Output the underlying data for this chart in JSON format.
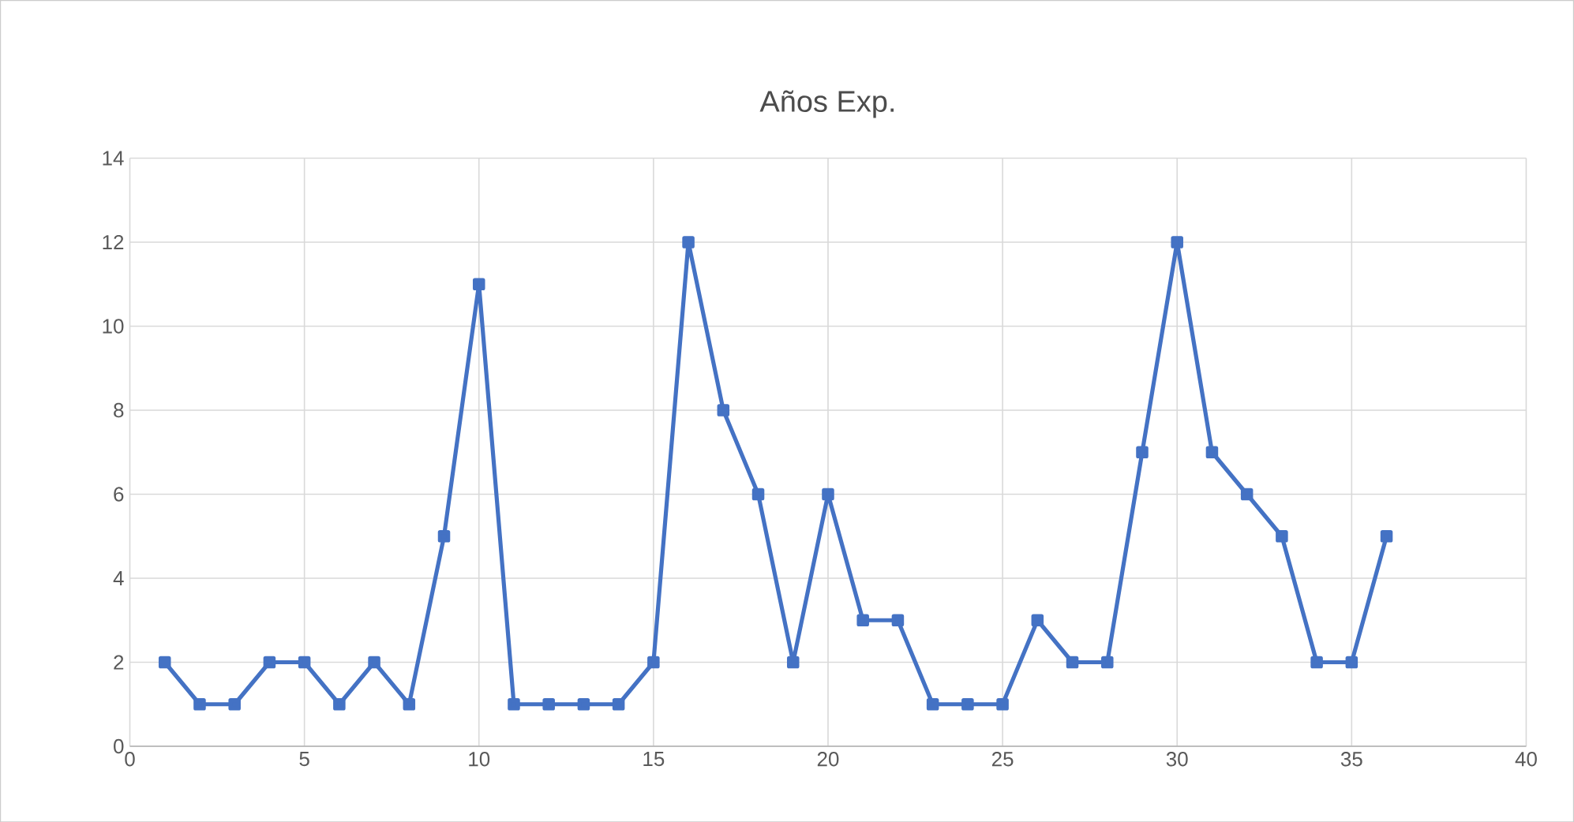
{
  "chart_data": {
    "type": "line",
    "title": "Años Exp.",
    "x": [
      1,
      2,
      3,
      4,
      5,
      6,
      7,
      8,
      9,
      10,
      11,
      12,
      13,
      14,
      15,
      16,
      17,
      18,
      19,
      20,
      21,
      22,
      23,
      24,
      25,
      26,
      27,
      28,
      29,
      30,
      31,
      32,
      33,
      34,
      35,
      36
    ],
    "series": [
      {
        "color": "#4472c4",
        "values": [
          2,
          1,
          1,
          2,
          2,
          1,
          2,
          1,
          5,
          11,
          1,
          1,
          1,
          1,
          2,
          12,
          8,
          6,
          2,
          6,
          3,
          3,
          1,
          1,
          1,
          3,
          2,
          2,
          7,
          12,
          7,
          6,
          5,
          2,
          2,
          5
        ]
      }
    ],
    "xlim": [
      0,
      40
    ],
    "xticks": [
      0,
      5,
      10,
      15,
      20,
      25,
      30,
      35,
      40
    ],
    "ylim": [
      0,
      14
    ],
    "yticks": [
      0,
      2,
      4,
      6,
      8,
      10,
      12,
      14
    ],
    "grid": true,
    "marker": "square",
    "line_style": "solid"
  }
}
